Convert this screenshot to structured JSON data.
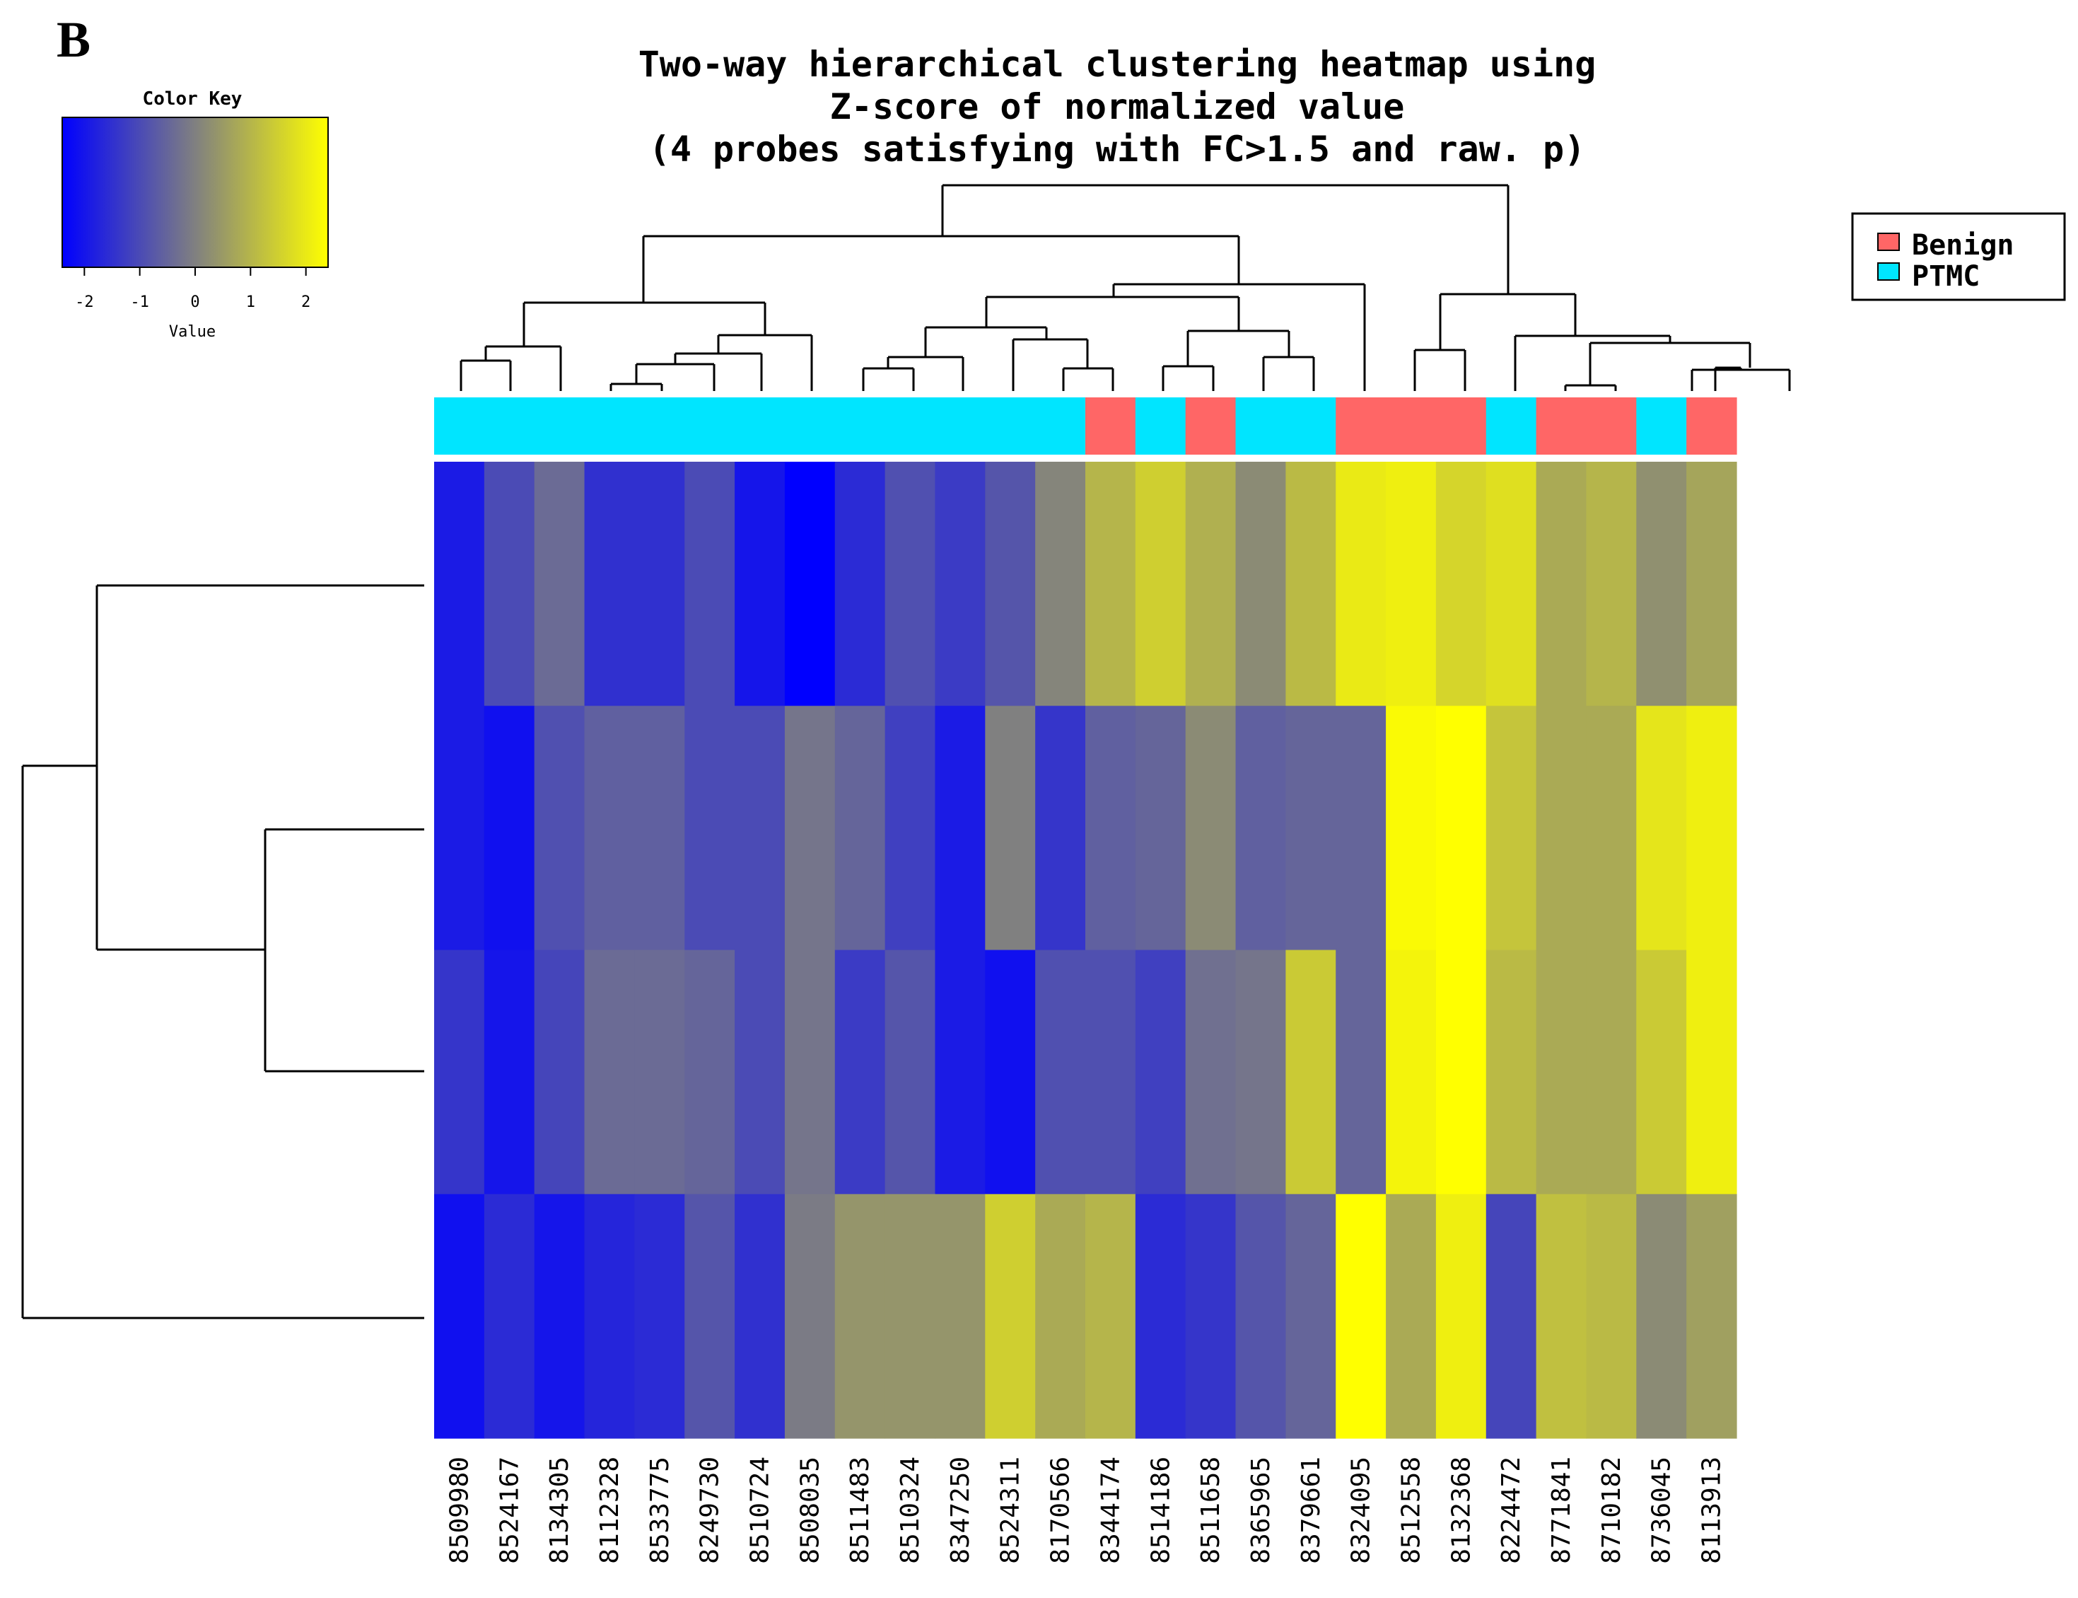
{
  "panel_label": "B",
  "chart_data": {
    "type": "heatmap",
    "title": [
      "Two-way hierarchical clustering heatmap using",
      "Z-score of normalized value",
      "(4 probes satisfying with FC>1.5 and raw. p)"
    ],
    "color_key": {
      "title": "Color Key",
      "xlabel": "Value",
      "ticks": [
        "-2",
        "-1",
        "0",
        "1",
        "2"
      ],
      "range": [
        -2.4,
        2.4
      ],
      "low_color": "#0000ff",
      "mid_color": "#808080",
      "high_color": "#ffff00"
    },
    "legend": [
      {
        "label": "Benign",
        "color": "#ff6666"
      },
      {
        "label": "PTMC",
        "color": "#00e5ff"
      }
    ],
    "columns": [
      "8509980",
      "8524167",
      "8134305",
      "8112328",
      "8533775",
      "8249730",
      "8510724",
      "8508035",
      "8511483",
      "8510324",
      "8347250",
      "8524311",
      "8170566",
      "8344174",
      "8514186",
      "8511658",
      "8365965",
      "8379661",
      "8324095",
      "8512558",
      "8132368",
      "8224472",
      "8771841",
      "8710182",
      "8736045",
      "8113913"
    ],
    "groups": [
      "PTMC",
      "PTMC",
      "PTMC",
      "PTMC",
      "PTMC",
      "PTMC",
      "PTMC",
      "PTMC",
      "PTMC",
      "PTMC",
      "PTMC",
      "PTMC",
      "PTMC",
      "Benign",
      "PTMC",
      "Benign",
      "PTMC",
      "PTMC",
      "Benign",
      "Benign",
      "Benign",
      "PTMC",
      "Benign",
      "Benign",
      "PTMC",
      "Benign"
    ],
    "rows": 4,
    "values": [
      [
        -1.9,
        -1.0,
        -0.4,
        -1.5,
        -1.5,
        -1.0,
        -2.0,
        -2.4,
        -1.6,
        -0.9,
        -1.3,
        -0.8,
        0.1,
        1.0,
        1.5,
        0.9,
        0.2,
        1.1,
        2.0,
        2.1,
        1.6,
        1.8,
        0.8,
        1.0,
        0.3,
        0.7
      ],
      [
        -1.9,
        -2.1,
        -0.9,
        -0.6,
        -0.6,
        -1.0,
        -1.0,
        -0.2,
        -0.5,
        -1.2,
        -1.9,
        0.0,
        -1.4,
        -0.6,
        -0.5,
        0.2,
        -0.6,
        -0.5,
        -0.5,
        2.3,
        2.4,
        1.3,
        0.8,
        0.8,
        1.9,
        2.1
      ],
      [
        -1.4,
        -2.0,
        -1.1,
        -0.4,
        -0.4,
        -0.5,
        -1.0,
        -0.2,
        -1.3,
        -0.8,
        -1.9,
        -2.1,
        -0.9,
        -0.9,
        -1.2,
        -0.3,
        -0.2,
        1.4,
        -0.5,
        2.2,
        2.4,
        1.1,
        0.8,
        0.8,
        1.4,
        2.1
      ],
      [
        -2.1,
        -1.6,
        -2.0,
        -1.7,
        -1.6,
        -0.8,
        -1.5,
        -0.1,
        0.4,
        0.4,
        0.4,
        1.5,
        0.8,
        1.0,
        -1.6,
        -1.4,
        -0.8,
        -0.5,
        2.4,
        0.8,
        2.1,
        -1.1,
        1.2,
        1.1,
        0.2,
        0.6
      ]
    ]
  }
}
